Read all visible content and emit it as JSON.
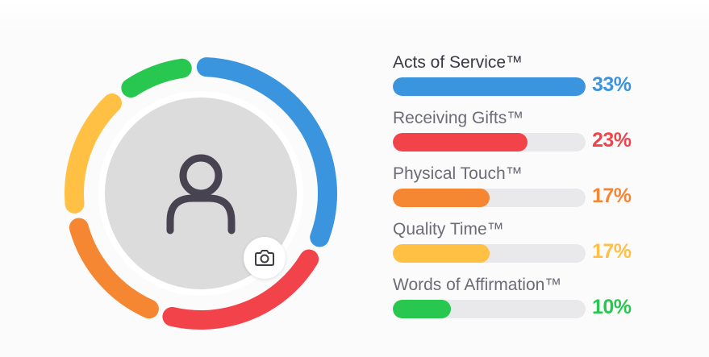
{
  "profile": {
    "avatar_icon": "user-silhouette-icon",
    "camera_icon": "camera-icon",
    "ring_segments": [
      {
        "name": "Acts of Service™",
        "color": "#3a94de"
      },
      {
        "name": "Receiving Gifts™",
        "color": "#f2434a"
      },
      {
        "name": "Physical Touch™",
        "color": "#f58733"
      },
      {
        "name": "Quality Time™",
        "color": "#ffc043"
      },
      {
        "name": "Words of Affirmation™",
        "color": "#28c750"
      }
    ]
  },
  "results": [
    {
      "label": "Acts of Service™",
      "percent": "33%",
      "fraction": 0.33,
      "bar_fill": 1.0,
      "color": "#3a94de"
    },
    {
      "label": "Receiving Gifts™",
      "percent": "23%",
      "fraction": 0.23,
      "bar_fill": 0.7,
      "color": "#f2434a"
    },
    {
      "label": "Physical Touch™",
      "percent": "17%",
      "fraction": 0.17,
      "bar_fill": 0.5,
      "color": "#f58733"
    },
    {
      "label": "Quality Time™",
      "percent": "17%",
      "fraction": 0.17,
      "bar_fill": 0.5,
      "color": "#ffc043"
    },
    {
      "label": "Words of Affirmation™",
      "percent": "10%",
      "fraction": 0.1,
      "bar_fill": 0.3,
      "color": "#28c750"
    }
  ]
}
